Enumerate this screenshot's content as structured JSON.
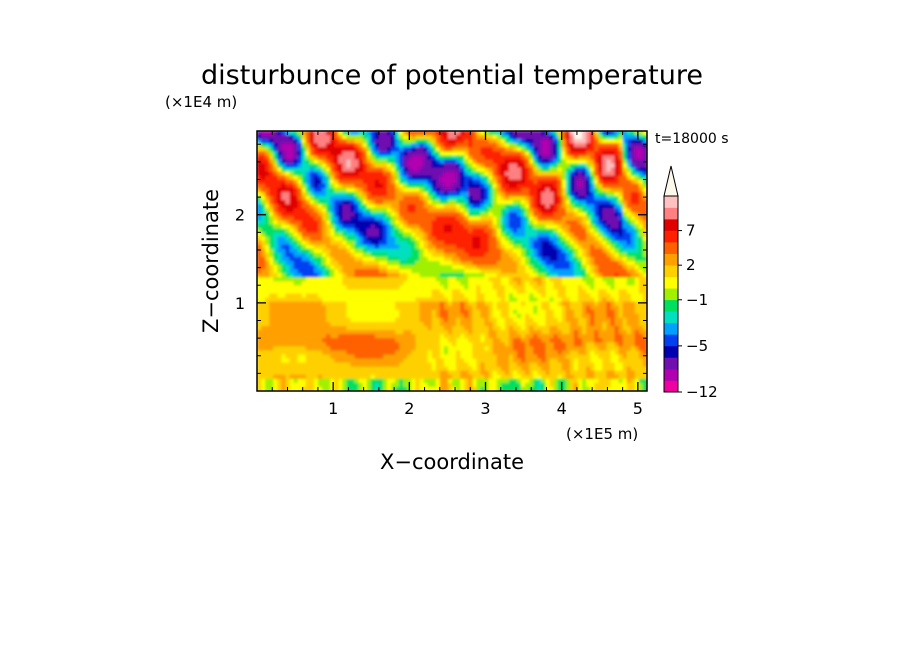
{
  "chart_data": {
    "type": "heatmap",
    "title": "disturbunce of potential temperature",
    "time_label": "t=18000 s",
    "xlabel": "X−coordinate",
    "ylabel": "Z−coordinate",
    "x_unit_label": "(×1E5 m)",
    "y_unit_label": "(×1E4 m)",
    "xlim": [
      0,
      5.12
    ],
    "ylim": [
      0,
      2.95
    ],
    "x_ticks": [
      "1",
      "2",
      "3",
      "4",
      "5"
    ],
    "y_ticks": [
      "1",
      "2"
    ],
    "colorbar": {
      "labels": [
        {
          "value": 7,
          "text": "7"
        },
        {
          "value": 2,
          "text": "2"
        },
        {
          "value": -1,
          "text": "−1"
        },
        {
          "value": -5,
          "text": "−5"
        },
        {
          "value": -12,
          "text": "−12"
        }
      ],
      "colors": [
        "#ee00a0",
        "#b000b0",
        "#7010b0",
        "#0000b0",
        "#0040f0",
        "#00a0ff",
        "#00e0c0",
        "#00e060",
        "#a0f000",
        "#ffff00",
        "#ffd000",
        "#ffa000",
        "#ff6000",
        "#ff2000",
        "#e00000",
        "#ff8080",
        "#ffc0c0"
      ],
      "extend_top_color": "#fff8ec"
    },
    "pattern_description_values": {
      "upper_layer_z_range": [
        1.3,
        2.95
      ],
      "lower_layer_z_range": [
        0,
        1.3
      ]
    }
  }
}
